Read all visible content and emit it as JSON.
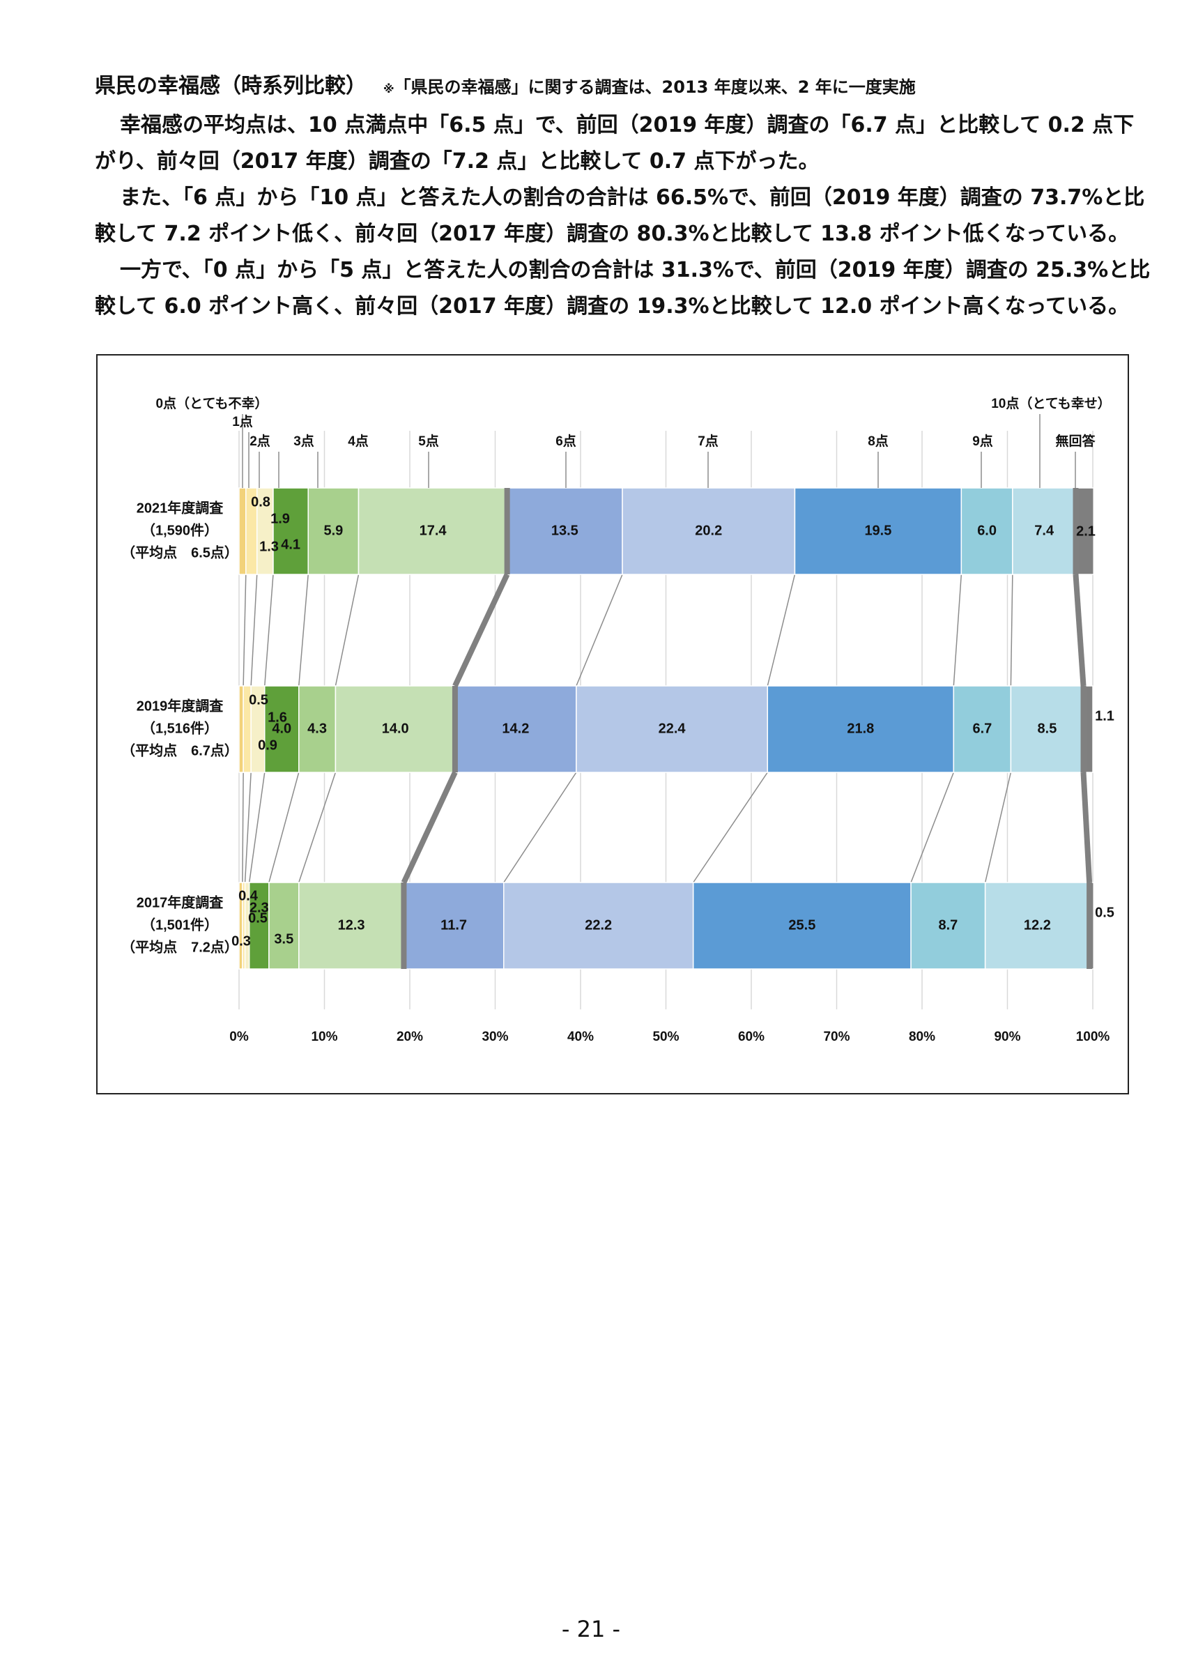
{
  "heading": {
    "title": "県民の幸福感（時系列比較）",
    "note_mark": "※",
    "note": "「県民の幸福感」に関する調査は、2013 年度以来、2 年に一度実施"
  },
  "paragraphs": [
    "幸福感の平均点は、10 点満点中「6.5 点」で、前回（2019 年度）調査の「6.7 点」と比較して 0.2 点下",
    "がり、前々回（2017 年度）調査の「7.2 点」と比較して 0.7 点下がった。",
    "また、「6 点」から「10 点」と答えた人の割合の合計は 66.5%で、前回（2019 年度）調査の 73.7%と比",
    "較して 7.2 ポイント低く、前々回（2017 年度）調査の 80.3%と比較して 13.8 ポイント低くなっている。",
    "一方で、「0 点」から「5 点」と答えた人の割合の合計は 31.3%で、前回（2019 年度）調査の 25.3%と比",
    "較して 6.0 ポイント高く、前々回（2017 年度）調査の 19.3%と比較して 12.0 ポイント高くなっている。"
  ],
  "chart_data": {
    "type": "bar",
    "orientation": "horizontal-stacked-100",
    "categories_labels": [
      "0点（とても不幸）",
      "1点",
      "2点",
      "3点",
      "4点",
      "5点",
      "6点",
      "7点",
      "8点",
      "9点",
      "10点（とても幸せ）",
      "無回答"
    ],
    "rows": [
      {
        "name": "2021年度調査",
        "count": "（1,590件）",
        "mean": "（平均点　6.5点）",
        "values": [
          0.8,
          1.3,
          1.9,
          4.1,
          5.9,
          17.4,
          13.5,
          20.2,
          19.5,
          6.0,
          7.4,
          2.1
        ],
        "labels": [
          "0.8",
          "1.3",
          "1.9",
          "4.1",
          "5.9",
          "17.4",
          "13.5",
          "20.2",
          "19.5",
          "6.0",
          "7.4",
          "2.1"
        ]
      },
      {
        "name": "2019年度調査",
        "count": "（1,516件）",
        "mean": "（平均点　6.7点）",
        "values": [
          0.5,
          0.9,
          1.6,
          4.0,
          4.3,
          14.0,
          14.2,
          22.4,
          21.8,
          6.7,
          8.5,
          1.1
        ],
        "labels": [
          "0.5",
          "0.9",
          "1.6",
          "4.0",
          "4.3",
          "14.0",
          "14.2",
          "22.4",
          "21.8",
          "6.7",
          "8.5",
          "1.1"
        ]
      },
      {
        "name": "2017年度調査",
        "count": "（1,501件）",
        "mean": "（平均点　7.2点）",
        "values": [
          0.4,
          0.3,
          0.5,
          2.3,
          3.5,
          12.3,
          11.7,
          22.2,
          25.5,
          8.7,
          12.2,
          0.5
        ],
        "labels": [
          "0.4",
          "0.3",
          "0.5",
          "2.3",
          "3.5",
          "12.3",
          "11.7",
          "22.2",
          "25.5",
          "8.7",
          "12.2",
          "0.5"
        ]
      }
    ],
    "xlim": [
      0,
      100
    ],
    "xticks": [
      "0%",
      "10%",
      "20%",
      "30%",
      "40%",
      "50%",
      "60%",
      "70%",
      "80%",
      "90%",
      "100%"
    ],
    "colors": [
      "#f2d27a",
      "#fbe8a6",
      "#f6f0c8",
      "#5fa03a",
      "#a8d08d",
      "#c5e0b4",
      "#8eaadb",
      "#b4c7e7",
      "#5b9bd5",
      "#92cddc",
      "#b7dde8",
      "#7f7f7f"
    ]
  },
  "page_number": "- 21 -"
}
